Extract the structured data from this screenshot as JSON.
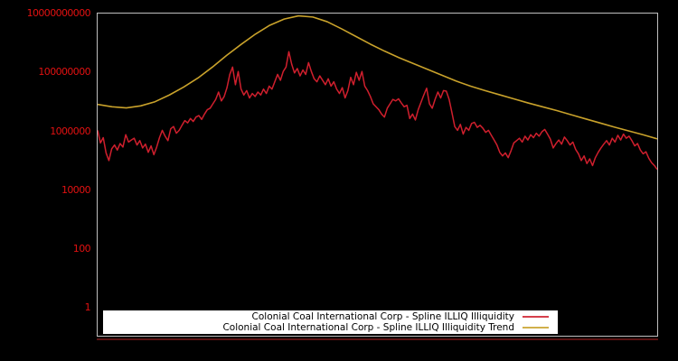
{
  "page": {
    "background": "#000000"
  },
  "chart_data": {
    "type": "line",
    "title": "",
    "xlabel": "",
    "ylabel": "",
    "log_scale_y": true,
    "ylim": [
      1,
      10000000000
    ],
    "grid": false,
    "frame_color": "#bfbfbf",
    "baseline_color": "#5a1212",
    "legend_position": "bottom-center",
    "legend_background": "#ffffff",
    "x_axis": {
      "tick_labels_visible": false
    },
    "y_axis": {
      "color": "#e01111",
      "tick_labels": [
        "10000000000",
        "100000000",
        "1000000",
        "10000",
        "100",
        "1"
      ],
      "tick_values": [
        10000000000,
        100000000,
        1000000,
        10000,
        100,
        1
      ]
    },
    "series": [
      {
        "name": "Colonial Coal International Corp - Spline ILLIQ Illiquidity",
        "color": "#cf1f2d",
        "values": [
          1120000.0,
          417000.0,
          631000.0,
          191000.0,
          105000.0,
          263000.0,
          355000.0,
          240000.0,
          398000.0,
          302000.0,
          794000.0,
          447000.0,
          525000.0,
          603000.0,
          355000.0,
          501000.0,
          282000.0,
          380000.0,
          200000.0,
          331000.0,
          166000.0,
          302000.0,
          631000.0,
          1120000.0,
          708000.0,
          501000.0,
          1260000.0,
          1510000.0,
          891000.0,
          1120000.0,
          1660000.0,
          2400000.0,
          2000000.0,
          2820000.0,
          2240000.0,
          3160000.0,
          3550000.0,
          2630000.0,
          3980000.0,
          5620000.0,
          6310000.0,
          8910000.0,
          12600000.0,
          22400000.0,
          11200000.0,
          15800000.0,
          31600000.0,
          89100000.0,
          158000000.0,
          39800000.0,
          112000000.0,
          28200000.0,
          17800000.0,
          25100000.0,
          14100000.0,
          20000000.0,
          15800000.0,
          22400000.0,
          17800000.0,
          28200000.0,
          20000000.0,
          35500000.0,
          28200000.0,
          50100000.0,
          89100000.0,
          56200000.0,
          112000000.0,
          158000000.0,
          525000000.0,
          200000000.0,
          100000000.0,
          141000000.0,
          79400000.0,
          126000000.0,
          89100000.0,
          224000000.0,
          112000000.0,
          63100000.0,
          50100000.0,
          79400000.0,
          56200000.0,
          39800000.0,
          63100000.0,
          35500000.0,
          50100000.0,
          28200000.0,
          20000000.0,
          31600000.0,
          14100000.0,
          25100000.0,
          70800000.0,
          39800000.0,
          105000000.0,
          56200000.0,
          112000000.0,
          35500000.0,
          25100000.0,
          15800000.0,
          8910000.0,
          7080000.0,
          5620000.0,
          3980000.0,
          3160000.0,
          6310000.0,
          8910000.0,
          12600000.0,
          11200000.0,
          13200000.0,
          9550000.0,
          7080000.0,
          7940000.0,
          2820000.0,
          3980000.0,
          2510000.0,
          5620000.0,
          10000000.0,
          17800000.0,
          30200000.0,
          8910000.0,
          6310000.0,
          12600000.0,
          22400000.0,
          14100000.0,
          25100000.0,
          24000000.0,
          12600000.0,
          4470000.0,
          1510000.0,
          1120000.0,
          1780000.0,
          832000.0,
          1410000.0,
          1120000.0,
          1910000.0,
          2090000.0,
          1410000.0,
          1660000.0,
          1320000.0,
          955000.0,
          1120000.0,
          759000.0,
          525000.0,
          355000.0,
          200000.0,
          151000.0,
          191000.0,
          132000.0,
          224000.0,
          417000.0,
          501000.0,
          603000.0,
          447000.0,
          708000.0,
          525000.0,
          794000.0,
          631000.0,
          891000.0,
          708000.0,
          1000000.0,
          1200000.0,
          832000.0,
          562000.0,
          282000.0,
          398000.0,
          525000.0,
          380000.0,
          661000.0,
          501000.0,
          355000.0,
          447000.0,
          251000.0,
          178000.0,
          105000.0,
          151000.0,
          83200.0,
          120000.0,
          70800.0,
          132000.0,
          200000.0,
          282000.0,
          380000.0,
          501000.0,
          355000.0,
          603000.0,
          447000.0,
          759000.0,
          525000.0,
          832000.0,
          603000.0,
          708000.0,
          501000.0,
          331000.0,
          398000.0,
          240000.0,
          178000.0,
          209000.0,
          126000.0,
          89100.0,
          70800.0,
          52500.0
        ]
      },
      {
        "name": "Colonial Coal International Corp - Spline ILLIQ Illiquidity Trend",
        "color": "#c9a22b",
        "values": [
          8510000.0,
          7080000.0,
          6460000.0,
          7590000.0,
          10500000.0,
          17800000.0,
          33100000.0,
          67600000.0,
          158000000.0,
          398000000.0,
          933000000.0,
          2090000000.0,
          4170000000.0,
          6760000000.0,
          8710000000.0,
          7940000000.0,
          5500000000.0,
          3160000000.0,
          1740000000.0,
          955000000.0,
          550000000.0,
          331000000.0,
          209000000.0,
          132000000.0,
          83200000.0,
          52500000.0,
          35500000.0,
          25100000.0,
          18200000.0,
          13200000.0,
          9550000.0,
          7080000.0,
          5250000.0,
          3800000.0,
          2750000.0,
          2000000.0,
          1450000.0,
          1070000.0,
          794000.0,
          575000.0
        ]
      }
    ]
  }
}
